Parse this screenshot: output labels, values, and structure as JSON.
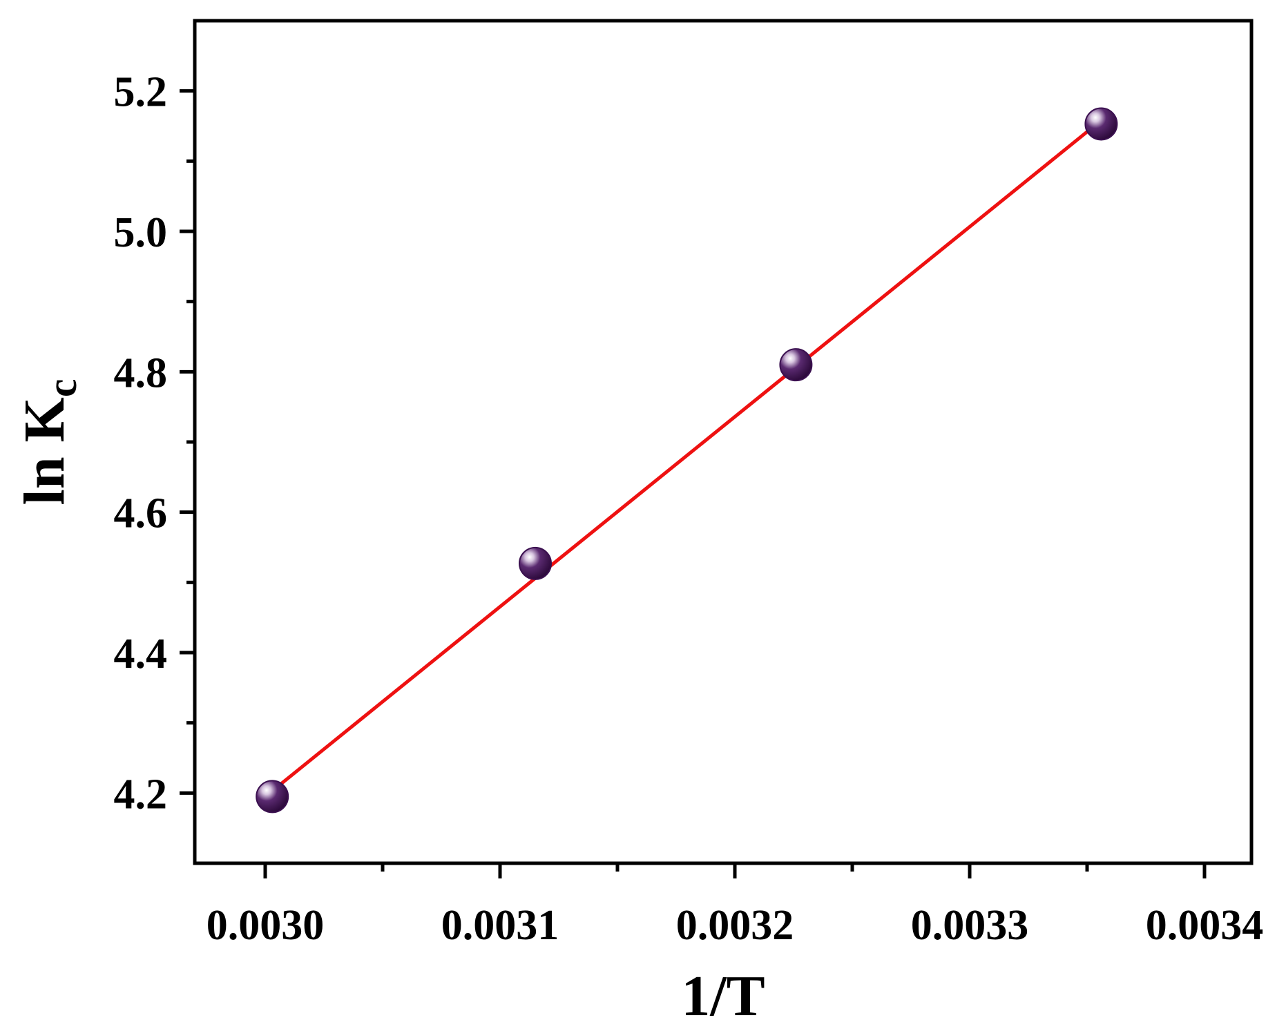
{
  "chart_data": {
    "type": "scatter",
    "xlabel": "1/T",
    "ylabel": {
      "main": "ln K",
      "sub": "c"
    },
    "xlim": [
      0.00297,
      0.00342
    ],
    "ylim": [
      4.1,
      5.3
    ],
    "x_ticks": [
      0.003,
      0.0031,
      0.0032,
      0.0033,
      0.0034
    ],
    "x_tick_labels": [
      "0.0030",
      "0.0031",
      "0.0032",
      "0.0033",
      "0.0034"
    ],
    "x_minor_ticks": [
      0.00305,
      0.00315,
      0.00325,
      0.00335
    ],
    "y_ticks": [
      4.2,
      4.4,
      4.6,
      4.8,
      5.0,
      5.2
    ],
    "y_tick_labels": [
      "4.2",
      "4.4",
      "4.6",
      "4.8",
      "5.0",
      "5.2"
    ],
    "y_minor_ticks": [
      4.3,
      4.5,
      4.7,
      4.9,
      5.1
    ],
    "grid": false,
    "legend": "none",
    "series": [
      {
        "type": "scatter",
        "color": "#3b1050",
        "points": [
          {
            "x": 0.003003,
            "y": 4.195
          },
          {
            "x": 0.003115,
            "y": 4.527
          },
          {
            "x": 0.003226,
            "y": 4.81
          },
          {
            "x": 0.003356,
            "y": 5.153
          }
        ]
      },
      {
        "type": "line",
        "color": "#ee1111",
        "points": [
          {
            "x": 0.003003,
            "y": 4.203
          },
          {
            "x": 0.003356,
            "y": 5.158
          }
        ]
      }
    ]
  }
}
